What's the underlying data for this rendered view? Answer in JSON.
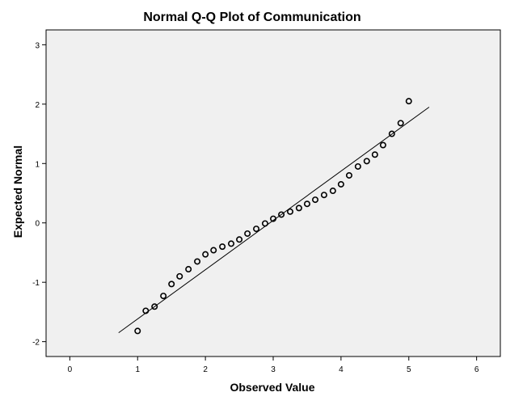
{
  "chart_data": {
    "type": "scatter",
    "title": "Normal Q-Q Plot of Communication",
    "xlabel": "Observed Value",
    "ylabel": "Expected Normal",
    "xlim": [
      -0.35,
      6.35
    ],
    "ylim": [
      -2.25,
      3.25
    ],
    "x_ticks": [
      0,
      1,
      2,
      3,
      4,
      5,
      6
    ],
    "y_ticks": [
      -2,
      -1,
      0,
      1,
      2,
      3
    ],
    "grid": false,
    "plot_background": "#f0f0f0",
    "marker_color": "#000000",
    "points": [
      {
        "x": 1.0,
        "y": -1.82
      },
      {
        "x": 1.12,
        "y": -1.48
      },
      {
        "x": 1.25,
        "y": -1.41
      },
      {
        "x": 1.38,
        "y": -1.23
      },
      {
        "x": 1.5,
        "y": -1.03
      },
      {
        "x": 1.62,
        "y": -0.9
      },
      {
        "x": 1.75,
        "y": -0.78
      },
      {
        "x": 1.88,
        "y": -0.65
      },
      {
        "x": 2.0,
        "y": -0.53
      },
      {
        "x": 2.12,
        "y": -0.46
      },
      {
        "x": 2.25,
        "y": -0.4
      },
      {
        "x": 2.38,
        "y": -0.35
      },
      {
        "x": 2.5,
        "y": -0.28
      },
      {
        "x": 2.62,
        "y": -0.18
      },
      {
        "x": 2.75,
        "y": -0.1
      },
      {
        "x": 2.88,
        "y": -0.01
      },
      {
        "x": 3.0,
        "y": 0.07
      },
      {
        "x": 3.12,
        "y": 0.14
      },
      {
        "x": 3.25,
        "y": 0.19
      },
      {
        "x": 3.38,
        "y": 0.25
      },
      {
        "x": 3.5,
        "y": 0.32
      },
      {
        "x": 3.62,
        "y": 0.39
      },
      {
        "x": 3.75,
        "y": 0.47
      },
      {
        "x": 3.88,
        "y": 0.54
      },
      {
        "x": 4.0,
        "y": 0.65
      },
      {
        "x": 4.12,
        "y": 0.8
      },
      {
        "x": 4.25,
        "y": 0.95
      },
      {
        "x": 4.38,
        "y": 1.04
      },
      {
        "x": 4.5,
        "y": 1.15
      },
      {
        "x": 4.62,
        "y": 1.31
      },
      {
        "x": 4.75,
        "y": 1.5
      },
      {
        "x": 4.88,
        "y": 1.68
      },
      {
        "x": 5.0,
        "y": 2.05
      }
    ],
    "reference_line": {
      "x": [
        0.72,
        5.3
      ],
      "y": [
        -1.85,
        1.95
      ]
    }
  }
}
